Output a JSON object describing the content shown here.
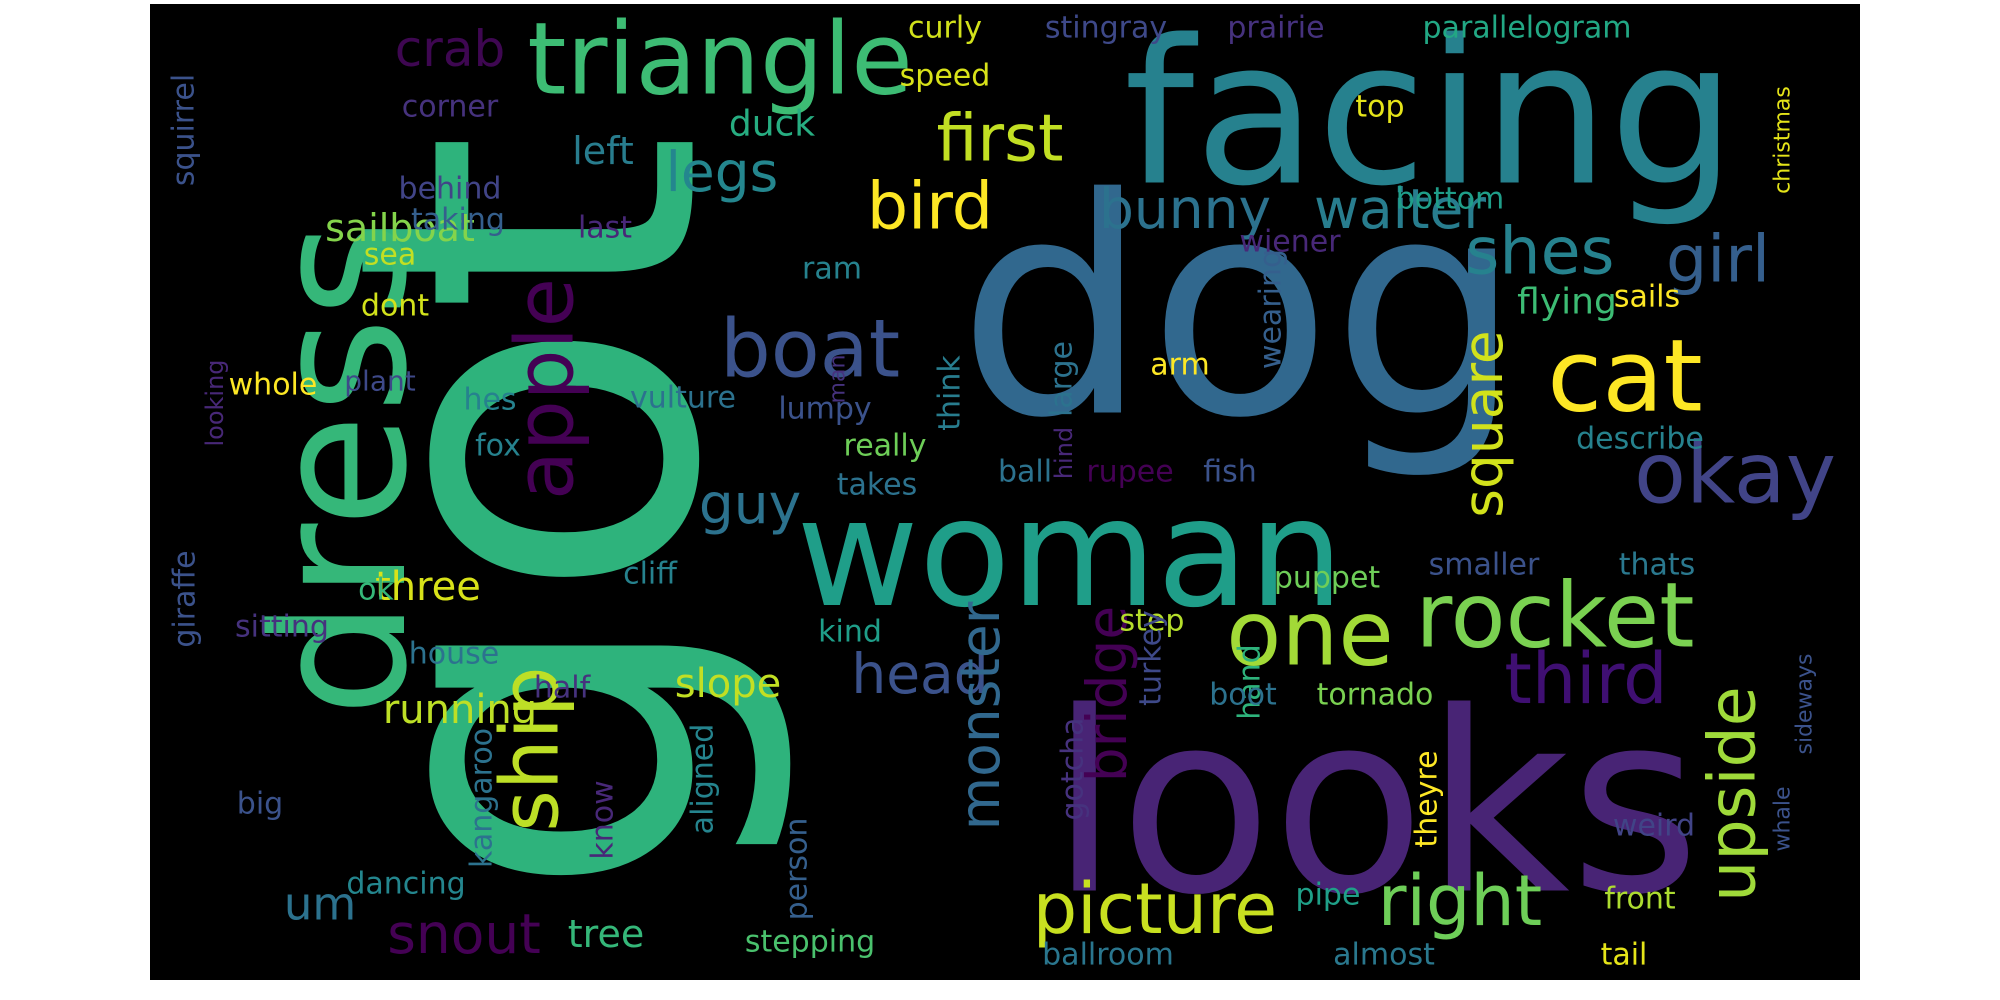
{
  "title": "",
  "background_color": "#000000",
  "palette": [
    "#440154",
    "#482878",
    "#3e4989",
    "#31688e",
    "#26828e",
    "#1f9e89",
    "#35b779",
    "#6ece58",
    "#b5de2b",
    "#fde725"
  ],
  "words": [
    {
      "text": "got",
      "color": "#2eb37c"
    },
    {
      "text": "dog",
      "color": "#31688e"
    },
    {
      "text": "looks",
      "color": "#482475"
    },
    {
      "text": "facing",
      "color": "#26818e"
    },
    {
      "text": "dress",
      "color": "#35b779"
    },
    {
      "text": "woman",
      "color": "#1f9e89"
    },
    {
      "text": "triangle",
      "color": "#3dbc74"
    },
    {
      "text": "cat",
      "color": "#fde725"
    },
    {
      "text": "rocket",
      "color": "#7ad151"
    },
    {
      "text": "one",
      "color": "#a2da37"
    },
    {
      "text": "okay",
      "color": "#414487"
    },
    {
      "text": "boat",
      "color": "#3b528b"
    },
    {
      "text": "apple",
      "color": "#440154"
    },
    {
      "text": "ship",
      "color": "#bddf26"
    },
    {
      "text": "first",
      "color": "#c2df23"
    },
    {
      "text": "picture",
      "color": "#c8e020"
    },
    {
      "text": "right",
      "color": "#6ece58"
    },
    {
      "text": "third",
      "color": "#3f0f72"
    },
    {
      "text": "bird",
      "color": "#fde725"
    },
    {
      "text": "upside",
      "color": "#9fda3a"
    },
    {
      "text": "shes",
      "color": "#26828e"
    },
    {
      "text": "girl",
      "color": "#355f8d"
    },
    {
      "text": "bunny",
      "color": "#2c728e"
    },
    {
      "text": "waiter",
      "color": "#287d8e"
    },
    {
      "text": "square",
      "color": "#d2e21b"
    },
    {
      "text": "legs",
      "color": "#24868e"
    },
    {
      "text": "head",
      "color": "#3b528b"
    },
    {
      "text": "monster",
      "color": "#31688e"
    },
    {
      "text": "bridge",
      "color": "#440154"
    },
    {
      "text": "snout",
      "color": "#440154"
    },
    {
      "text": "guy",
      "color": "#2c728e"
    },
    {
      "text": "crab",
      "color": "#3e0751"
    },
    {
      "text": "um",
      "color": "#2c728e"
    },
    {
      "text": "running",
      "color": "#bddf26"
    },
    {
      "text": "slope",
      "color": "#c2df23"
    },
    {
      "text": "three",
      "color": "#d8e219"
    },
    {
      "text": "sailboat",
      "color": "#84d44b"
    },
    {
      "text": "left",
      "color": "#287d8e"
    },
    {
      "text": "duck",
      "color": "#27ad81"
    },
    {
      "text": "flying",
      "color": "#3dbc74"
    },
    {
      "text": "giraffe",
      "color": "#3b528b"
    },
    {
      "text": "tree",
      "color": "#35b779"
    },
    {
      "text": "dancing",
      "color": "#24868e"
    },
    {
      "text": "stepping",
      "color": "#4ac16d"
    },
    {
      "text": "ballroom",
      "color": "#2a768e"
    },
    {
      "text": "almost",
      "color": "#2a788e"
    },
    {
      "text": "tail",
      "color": "#e5e419"
    },
    {
      "text": "front",
      "color": "#addc30"
    },
    {
      "text": "pipe",
      "color": "#1fa088"
    },
    {
      "text": "whale",
      "color": "#3b528b"
    },
    {
      "text": "sideways",
      "color": "#3b528b"
    },
    {
      "text": "weird",
      "color": "#414487"
    },
    {
      "text": "theyre",
      "color": "#fde725"
    },
    {
      "text": "person",
      "color": "#355f8d"
    },
    {
      "text": "aligned",
      "color": "#25848e"
    },
    {
      "text": "know",
      "color": "#482878"
    },
    {
      "text": "kangaroo",
      "color": "#2c728e"
    },
    {
      "text": "big",
      "color": "#3b528b"
    },
    {
      "text": "half",
      "color": "#46327e"
    },
    {
      "text": "house",
      "color": "#2c728e"
    },
    {
      "text": "ok",
      "color": "#35b779"
    },
    {
      "text": "sitting",
      "color": "#46327e"
    },
    {
      "text": "cliff",
      "color": "#26828e"
    },
    {
      "text": "puppet",
      "color": "#6ece58"
    },
    {
      "text": "smaller",
      "color": "#3b528b"
    },
    {
      "text": "thats",
      "color": "#2a788e"
    },
    {
      "text": "step",
      "color": "#b5de2b"
    },
    {
      "text": "kind",
      "color": "#1f9e89"
    },
    {
      "text": "gotcha",
      "color": "#46327e"
    },
    {
      "text": "turkey",
      "color": "#3e4989"
    },
    {
      "text": "hand",
      "color": "#2eb37c"
    },
    {
      "text": "boot",
      "color": "#2c728e"
    },
    {
      "text": "tornado",
      "color": "#7ad151"
    },
    {
      "text": "squirrel",
      "color": "#3b528b"
    },
    {
      "text": "looking",
      "color": "#482878"
    },
    {
      "text": "whole",
      "color": "#fde725"
    },
    {
      "text": "plant",
      "color": "#3e4989"
    },
    {
      "text": "hes",
      "color": "#26828e"
    },
    {
      "text": "fox",
      "color": "#26828e"
    },
    {
      "text": "vulture",
      "color": "#2c728e"
    },
    {
      "text": "lumpy",
      "color": "#3b528b"
    },
    {
      "text": "really",
      "color": "#6ece58"
    },
    {
      "text": "takes",
      "color": "#2c728e"
    },
    {
      "text": "man",
      "color": "#46327e"
    },
    {
      "text": "think",
      "color": "#287d8e"
    },
    {
      "text": "large",
      "color": "#2c728e"
    },
    {
      "text": "arm",
      "color": "#fde725"
    },
    {
      "text": "wearing",
      "color": "#355f8d"
    },
    {
      "text": "ball",
      "color": "#2c728e"
    },
    {
      "text": "hind",
      "color": "#482878"
    },
    {
      "text": "rupee",
      "color": "#440154"
    },
    {
      "text": "fish",
      "color": "#3b528b"
    },
    {
      "text": "describe",
      "color": "#26828e"
    },
    {
      "text": "sails",
      "color": "#fde725"
    },
    {
      "text": "wiener",
      "color": "#482878"
    },
    {
      "text": "bottom",
      "color": "#1f9e89"
    },
    {
      "text": "christmas",
      "color": "#e5e419"
    },
    {
      "text": "ram",
      "color": "#26828e"
    },
    {
      "text": "last",
      "color": "#482878"
    },
    {
      "text": "sea",
      "color": "#c2df23"
    },
    {
      "text": "dont",
      "color": "#d2e21b"
    },
    {
      "text": "taking",
      "color": "#355f8d"
    },
    {
      "text": "behind",
      "color": "#414487"
    },
    {
      "text": "corner",
      "color": "#46327e"
    },
    {
      "text": "speed",
      "color": "#d8e219"
    },
    {
      "text": "curly",
      "color": "#d2e21b"
    },
    {
      "text": "stingray",
      "color": "#3e4989"
    },
    {
      "text": "prairie",
      "color": "#46327e"
    },
    {
      "text": "parallelogram",
      "color": "#22a884"
    },
    {
      "text": "top",
      "color": "#e5e419"
    }
  ]
}
